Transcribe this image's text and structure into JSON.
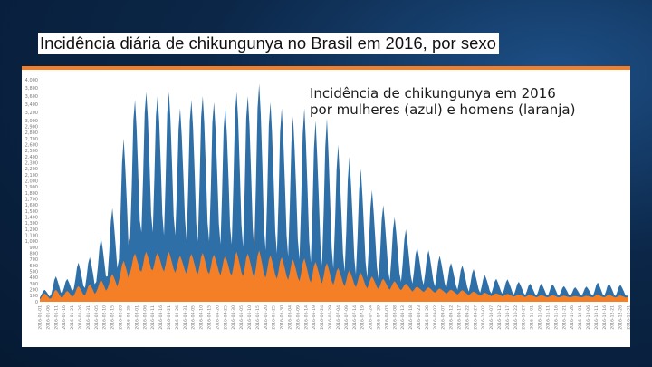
{
  "slide": {
    "title": "Incidência diária de chikungunya no Brasil em 2016, por sexo"
  },
  "colors": {
    "women": "#2e6fa7",
    "men": "#f47f27",
    "accent_strip": "#f47f27",
    "background": "#0b2647"
  },
  "chart_data": {
    "type": "area",
    "title": "Incidência de chikungunya em 2016\npor mulheres (azul) e homens (laranja)",
    "xlabel": "",
    "ylabel": "",
    "ylim": [
      0,
      4000
    ],
    "y_scale": "compressed",
    "y_ticks": [
      0,
      100,
      200,
      300,
      400,
      500,
      600,
      700,
      800,
      900,
      1000,
      1100,
      1200,
      1300,
      1400,
      1500,
      1600,
      1700,
      1800,
      1900,
      2000,
      2100,
      2200,
      2300,
      2400,
      2500,
      2600,
      2700,
      2800,
      2900,
      3000,
      3200,
      3400,
      3600,
      3800,
      4000
    ],
    "x_start": "2016-01-01",
    "x_end": "2016-12-31",
    "x_tick_step_days": 5,
    "grid": false,
    "legend": "none",
    "weekly_profile_women": [
      [
        70,
        200
      ],
      [
        120,
        420
      ],
      [
        150,
        380
      ],
      [
        210,
        650
      ],
      [
        230,
        740
      ],
      [
        330,
        1050
      ],
      [
        420,
        1550
      ],
      [
        700,
        2700
      ],
      [
        1050,
        3500
      ],
      [
        1150,
        3700
      ],
      [
        1150,
        3600
      ],
      [
        1100,
        3700
      ],
      [
        1100,
        3300
      ],
      [
        1000,
        3500
      ],
      [
        1000,
        3600
      ],
      [
        1000,
        3450
      ],
      [
        950,
        3350
      ],
      [
        950,
        3700
      ],
      [
        900,
        3600
      ],
      [
        850,
        3900
      ],
      [
        850,
        3450
      ],
      [
        800,
        3300
      ],
      [
        750,
        3100
      ],
      [
        700,
        3300
      ],
      [
        650,
        3000
      ],
      [
        600,
        3050
      ],
      [
        550,
        2600
      ],
      [
        500,
        2400
      ],
      [
        450,
        2200
      ],
      [
        400,
        1850
      ],
      [
        380,
        1600
      ],
      [
        350,
        1400
      ],
      [
        330,
        1200
      ],
      [
        300,
        900
      ],
      [
        280,
        850
      ],
      [
        250,
        760
      ],
      [
        220,
        640
      ],
      [
        200,
        600
      ],
      [
        170,
        540
      ],
      [
        150,
        440
      ],
      [
        140,
        380
      ],
      [
        130,
        370
      ],
      [
        120,
        330
      ],
      [
        110,
        300
      ],
      [
        100,
        300
      ],
      [
        100,
        290
      ],
      [
        100,
        260
      ],
      [
        100,
        240
      ],
      [
        100,
        250
      ],
      [
        100,
        320
      ],
      [
        100,
        300
      ],
      [
        95,
        280
      ]
    ],
    "weekly_profile_men": [
      [
        40,
        140
      ],
      [
        60,
        200
      ],
      [
        70,
        180
      ],
      [
        100,
        260
      ],
      [
        110,
        290
      ],
      [
        160,
        360
      ],
      [
        220,
        460
      ],
      [
        350,
        680
      ],
      [
        480,
        800
      ],
      [
        500,
        830
      ],
      [
        520,
        810
      ],
      [
        500,
        830
      ],
      [
        480,
        760
      ],
      [
        460,
        790
      ],
      [
        460,
        810
      ],
      [
        460,
        780
      ],
      [
        440,
        760
      ],
      [
        440,
        830
      ],
      [
        420,
        800
      ],
      [
        400,
        850
      ],
      [
        400,
        770
      ],
      [
        380,
        740
      ],
      [
        360,
        700
      ],
      [
        340,
        720
      ],
      [
        320,
        660
      ],
      [
        300,
        640
      ],
      [
        280,
        560
      ],
      [
        260,
        520
      ],
      [
        240,
        480
      ],
      [
        220,
        420
      ],
      [
        210,
        380
      ],
      [
        200,
        340
      ],
      [
        190,
        300
      ],
      [
        170,
        250
      ],
      [
        160,
        240
      ],
      [
        150,
        220
      ],
      [
        130,
        200
      ],
      [
        120,
        190
      ],
      [
        110,
        170
      ],
      [
        100,
        150
      ],
      [
        95,
        140
      ],
      [
        90,
        130
      ],
      [
        85,
        120
      ],
      [
        80,
        115
      ],
      [
        75,
        110
      ],
      [
        75,
        108
      ],
      [
        75,
        100
      ],
      [
        75,
        95
      ],
      [
        75,
        98
      ],
      [
        75,
        120
      ],
      [
        75,
        115
      ],
      [
        70,
        105
      ]
    ]
  }
}
